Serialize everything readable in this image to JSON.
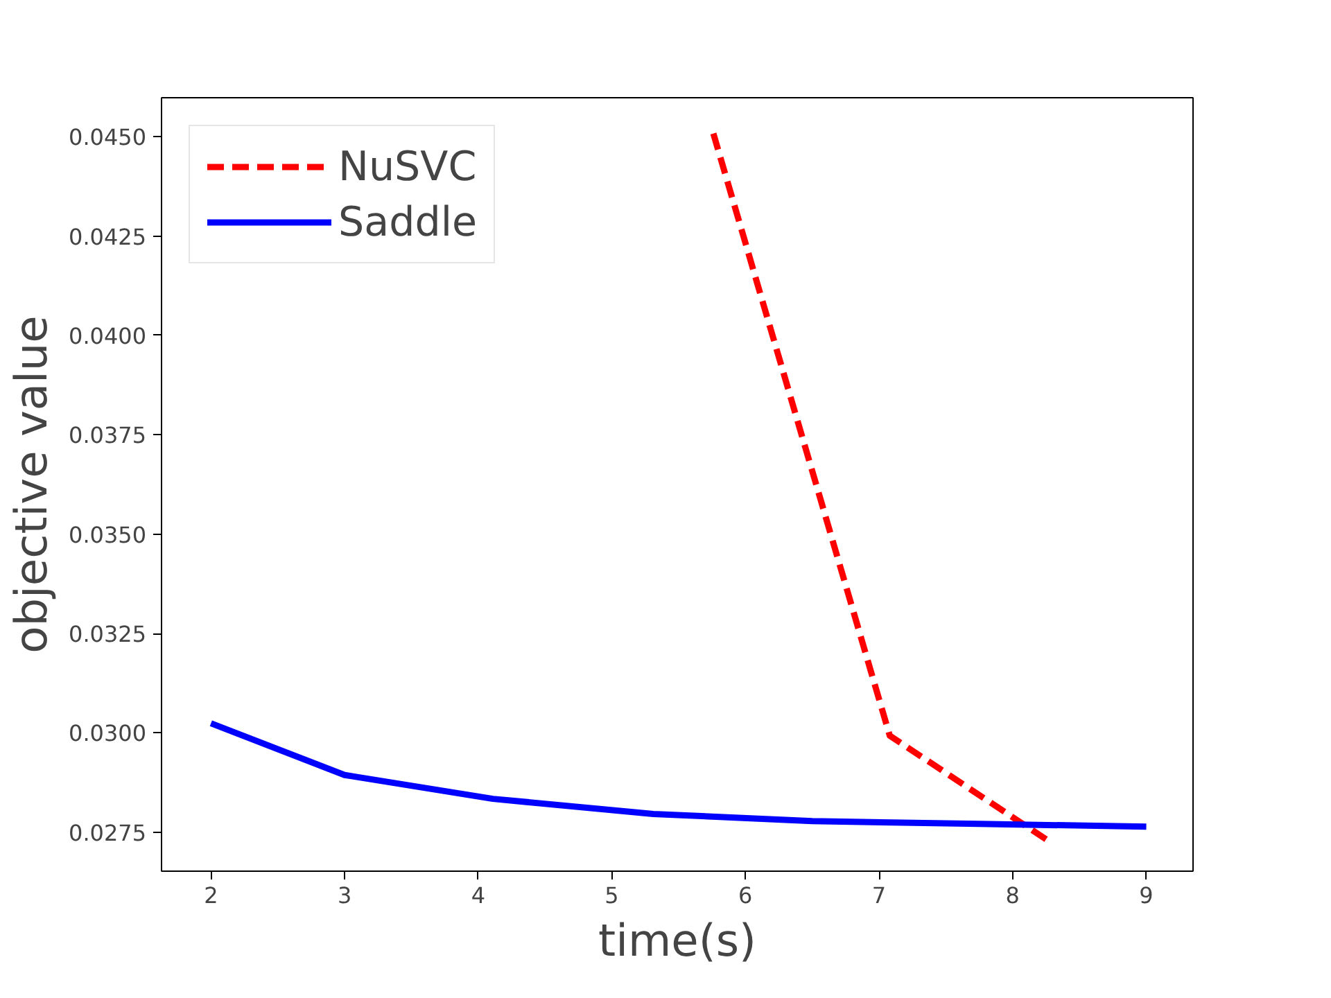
{
  "chart_data": {
    "type": "line",
    "xlabel": "time(s)",
    "ylabel": "objective value",
    "xlim": [
      1.63,
      9.35
    ],
    "xticks": [
      2,
      3,
      4,
      5,
      6,
      7,
      8,
      9
    ],
    "ylim": [
      0.02652,
      0.04598
    ],
    "yticks": [
      {
        "value": 0.0275,
        "label": "0.0275"
      },
      {
        "value": 0.03,
        "label": "0.0300"
      },
      {
        "value": 0.0325,
        "label": "0.0325"
      },
      {
        "value": 0.035,
        "label": "0.0350"
      },
      {
        "value": 0.0375,
        "label": "0.0375"
      },
      {
        "value": 0.04,
        "label": "0.0400"
      },
      {
        "value": 0.0425,
        "label": "0.0425"
      },
      {
        "value": 0.045,
        "label": "0.0450"
      }
    ],
    "legend": "top left",
    "grid": false,
    "series": [
      {
        "name": "NuSVC",
        "color": "#ff0000",
        "line_style": "dashed",
        "x": [
          5.76,
          7.08,
          8.25
        ],
        "values": [
          0.04508,
          0.02993,
          0.02732
        ]
      },
      {
        "name": "Saddle",
        "color": "#0000ff",
        "line_style": "solid",
        "x": [
          2.0,
          3.0,
          4.11,
          5.31,
          6.5,
          7.75,
          9.0
        ],
        "values": [
          0.03024,
          0.02894,
          0.02834,
          0.02796,
          0.02778,
          0.02771,
          0.02764
        ]
      }
    ]
  }
}
